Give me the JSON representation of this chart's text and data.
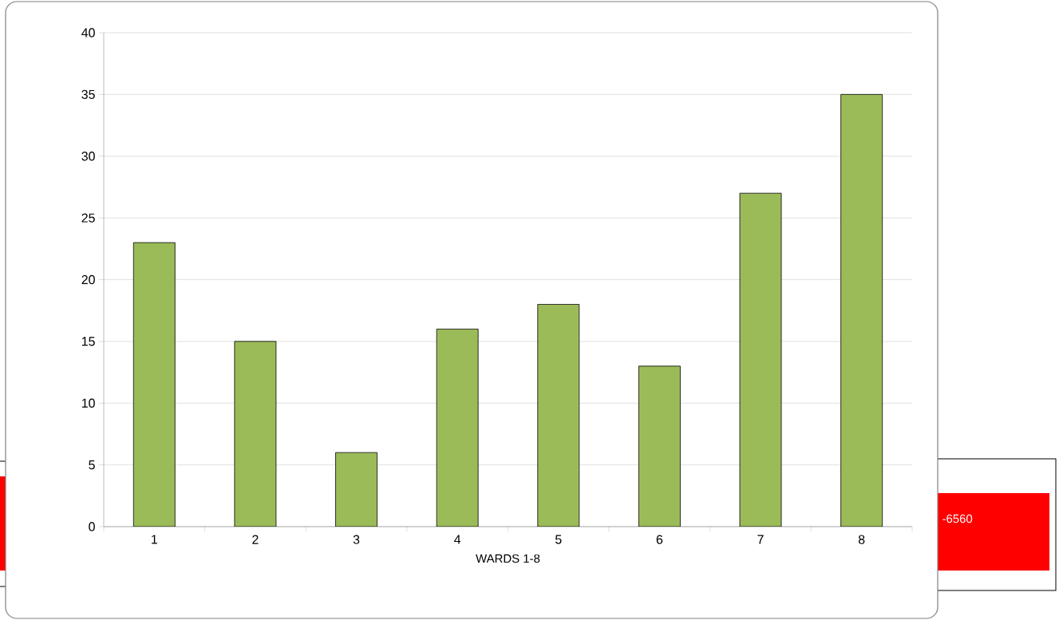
{
  "chart_data": {
    "type": "bar",
    "xlabel": "WARDS 1-8",
    "categories": [
      "1",
      "2",
      "3",
      "4",
      "5",
      "6",
      "7",
      "8"
    ],
    "values": [
      23,
      15,
      6,
      16,
      18,
      13,
      27,
      35
    ],
    "color": "#9bbb59",
    "ylim": [
      0,
      40
    ],
    "yticks": [
      0,
      5,
      10,
      15,
      20,
      25,
      30,
      35,
      40
    ],
    "grid": "y",
    "annotations": [
      "-6560"
    ]
  }
}
